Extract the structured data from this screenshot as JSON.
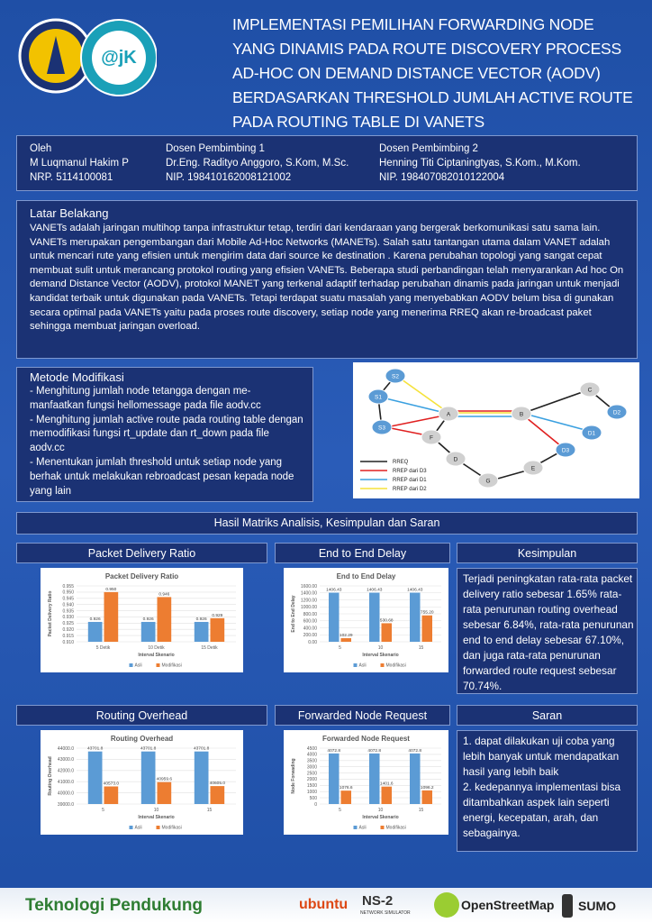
{
  "header": {
    "logo_text": "@jK",
    "title_lines": [
      "IMPLEMENTASI PEMILIHAN FORWARDING NODE",
      "YANG DINAMIS PADA ROUTE DISCOVERY PROCESS",
      "AD-HOC ON DEMAND DISTANCE VECTOR (AODV)",
      "BERDASARKAN THRESHOLD JUMLAH ACTIVE ROUTE",
      "PADA ROUTING TABLE DI VANETS"
    ]
  },
  "authors": [
    {
      "label": "Oleh",
      "name": "M Luqmanul Hakim P",
      "id": "NRP. 5114100081"
    },
    {
      "label": "Dosen Pembimbing 1",
      "name": "Dr.Eng. Radityo Anggoro, S.Kom, M.Sc.",
      "id": "NIP. 198410162008121002"
    },
    {
      "label": "Dosen Pembimbing 2",
      "name": "Henning Titi Ciptaningtyas, S.Kom., M.Kom.",
      "id": "NIP. 198407082010122004"
    }
  ],
  "background": {
    "heading": "Latar Belakang",
    "text": "VANETs adalah jaringan multihop tanpa infrastruktur tetap, terdiri dari kendaraan yang bergerak berkomunikasi satu sama lain. VANETs merupakan pengembangan dari Mobile Ad-Hoc Networks (MANETs). Salah satu tantangan utama dalam VANET adalah untuk mencari rute yang efisien untuk mengirim data dari source ke destination . Karena perubahan topologi yang sangat cepat membuat sulit untuk merancang protokol routing yang efisien VANETs. Beberapa studi perbandingan telah menyarankan Ad hoc On demand Distance Vector (AODV), protokol MANET yang terkenal adaptif terhadap perubahan dinamis pada jaringan untuk menjadi kandidat terbaik untuk digunakan pada VANETs. Tetapi terdapat suatu masalah yang menyebabkan AODV belum bisa di gunakan secara optimal pada VANETs yaitu pada proses route discovery, setiap node yang menerima RREQ akan re-broadcast paket sehingga membuat jaringan overload."
  },
  "method": {
    "heading": "Metode Modifikasi",
    "items": [
      "- Menghitung jumlah node tetangga dengan me-manfaatkan fungsi hellomessage pada file aodv.cc",
      "- Menghitung jumlah active route  pada routing table dengan memodifikasi fungsi rt_update dan rt_down pada file aodv.cc",
      "- Menentukan jumlah threshold untuk setiap node yang berhak untuk melakukan rebroadcast pesan kepada node yang lain"
    ]
  },
  "diagram": {
    "nodes": [
      "S2",
      "S1",
      "S3",
      "A",
      "F",
      "B",
      "C",
      "D2",
      "D1",
      "D3",
      "D",
      "E",
      "G"
    ],
    "legend": [
      "RREQ",
      "RREP dari D3",
      "RREP dari D1",
      "RREP dari D2"
    ]
  },
  "results": {
    "heading": "Hasil Matriks Analisis, Kesimpulan dan Saran"
  },
  "charts": [
    {
      "type": "bar",
      "title": "Packet Delivery Ratio",
      "x_label": "Interval Skenario",
      "y_label": "Packet Delivery Ratio",
      "categories": [
        "5 Detik",
        "10 Detik",
        "15 Detik"
      ],
      "series": [
        {
          "name": "Asli",
          "color": "#5b9bd5",
          "values": [
            0.926,
            0.926,
            0.926
          ]
        },
        {
          "name": "Modifikasi",
          "color": "#ed7d31",
          "values": [
            0.95,
            0.946,
            0.929
          ],
          "value_labels": [
            "0.950",
            "0.946",
            "0.929"
          ]
        }
      ],
      "ylim": [
        0.91,
        0.955
      ],
      "yticks": [
        {
          "value": 0.91,
          "label": "0.910"
        },
        0.915,
        {
          "value": 0.92,
          "label": "0.920"
        },
        0.925,
        {
          "value": 0.93,
          "label": "0.930"
        },
        0.935,
        {
          "value": 0.94,
          "label": "0.940"
        },
        0.945,
        {
          "value": 0.95,
          "label": "0.950"
        },
        0.955
      ],
      "grid": true
    },
    {
      "type": "bar",
      "title": "End to End Delay",
      "x_label": "Interval Skenario",
      "y_label": "End to End Delay",
      "categories": [
        "5",
        "10",
        "15"
      ],
      "series": [
        {
          "name": "Asli",
          "color": "#5b9bd5",
          "values": [
            1406.43,
            1406.43,
            1406.43
          ]
        },
        {
          "name": "Modifikasi",
          "color": "#ed7d31",
          "values": [
            102.29,
            530.68,
            755.2
          ],
          "value_labels": [
            "102.29",
            "530.68",
            "755.20"
          ]
        }
      ],
      "ylim": [
        0,
        1600
      ],
      "yticks": [
        {
          "value": 0,
          "label": "0.00"
        },
        {
          "value": 200,
          "label": "200.00"
        },
        {
          "value": 400,
          "label": "400.00"
        },
        {
          "value": 600,
          "label": "600.00"
        },
        {
          "value": 800,
          "label": "800.00"
        },
        {
          "value": 1000,
          "label": "1000.00"
        },
        {
          "value": 1200,
          "label": "1200.00"
        },
        {
          "value": 1400,
          "label": "1400.00"
        },
        {
          "value": 1600,
          "label": "1600.00"
        }
      ],
      "grid": true
    },
    {
      "type": "bar",
      "title": "Routing Overhead",
      "x_label": "Interval Skenario",
      "y_label": "Routing Overhead",
      "categories": [
        "5",
        "10",
        "15"
      ],
      "series": [
        {
          "name": "Asli",
          "color": "#5b9bd5",
          "values": [
            43701.8,
            43701.8,
            43701.8
          ]
        },
        {
          "name": "Modifikasi",
          "color": "#ed7d31",
          "values": [
            40573,
            40959.6,
            40605
          ],
          "value_labels": [
            "40573.0",
            "40959.6",
            "40605.0"
          ]
        }
      ],
      "ylim": [
        39000,
        44000
      ],
      "yticks": [
        {
          "value": 39000,
          "label": "39000.0"
        },
        {
          "value": 40000,
          "label": "40000.0"
        },
        {
          "value": 41000,
          "label": "41000.0"
        },
        {
          "value": 42000,
          "label": "42000.0"
        },
        {
          "value": 43000,
          "label": "43000.0"
        },
        {
          "value": 44000,
          "label": "44000.0"
        }
      ],
      "grid": true
    },
    {
      "type": "bar",
      "title": "Forwarded Node Request",
      "x_label": "Interval Skenario",
      "y_label": "Node Forwading",
      "categories": [
        "5",
        "10",
        "15"
      ],
      "series": [
        {
          "name": "Asli",
          "color": "#5b9bd5",
          "values": [
            4072.8,
            4072.8,
            4072.8
          ]
        },
        {
          "name": "Modifikasi",
          "color": "#ed7d31",
          "values": [
            1076.6,
            1401.6,
            1096.2
          ]
        }
      ],
      "ylim": [
        0,
        4500
      ],
      "yticks": [
        0,
        500,
        1000,
        1500,
        2000,
        2500,
        3000,
        3500,
        4000,
        4500
      ],
      "grid": true
    }
  ],
  "conclusion": {
    "heading": "Kesimpulan",
    "text": "Terjadi peningkatan rata-rata packet delivery ratio sebesar 1.65% rata-rata penurunan routing overhead sebesar 6.84%, rata-rata penurunan end to end delay sebesar 67.10%, dan juga rata-rata penurunan forwarded route request sebesar 70.74%."
  },
  "suggestion": {
    "heading": "Saran",
    "items": [
      "1. dapat dilakukan uji coba yang lebih banyak untuk mendapatkan hasil yang lebih baik",
      "2. kedepannya implementasi bisa ditambahkan aspek lain seperti energi, kecepatan, arah, dan sebagainya."
    ]
  },
  "footer": {
    "heading": "Teknologi Pendukung",
    "logos": [
      "ubuntu",
      "NS-2",
      "NETWORK SIMULATOR",
      "OpenStreetMap",
      "SUMO"
    ]
  }
}
